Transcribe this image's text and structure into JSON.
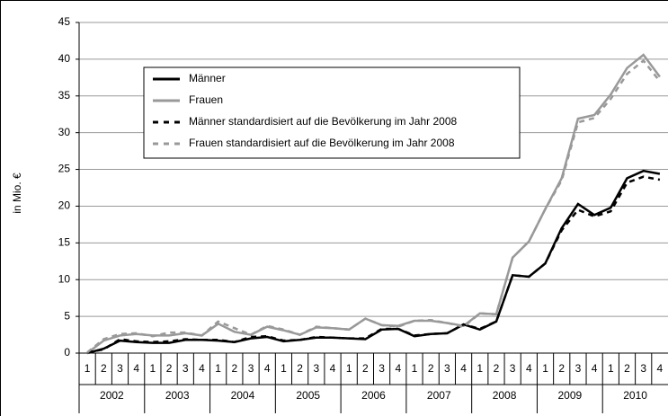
{
  "chart_data": {
    "type": "line",
    "y_label": "in Mio. €",
    "categories": [
      "1",
      "2",
      "3",
      "4",
      "1",
      "2",
      "3",
      "4",
      "1",
      "2",
      "3",
      "4",
      "1",
      "2",
      "3",
      "4",
      "1",
      "2",
      "3",
      "4",
      "1",
      "2",
      "3",
      "4",
      "1",
      "2",
      "3",
      "4",
      "1",
      "2",
      "3",
      "4",
      "1",
      "2",
      "3",
      "4"
    ],
    "year_groups": [
      "2002",
      "2003",
      "2004",
      "2005",
      "2006",
      "2007",
      "2008",
      "2009",
      "2010"
    ],
    "ylim": [
      0,
      45
    ],
    "yticks": [
      0,
      5,
      10,
      15,
      20,
      25,
      30,
      35,
      40,
      45
    ],
    "grid": true,
    "series": [
      {
        "name": "Männer",
        "color": "#000000",
        "dashed": false,
        "values": [
          0,
          0.6,
          1.7,
          1.5,
          1.4,
          1.4,
          1.8,
          1.8,
          1.7,
          1.5,
          2.0,
          2.2,
          1.6,
          1.8,
          2.1,
          2.1,
          2.0,
          1.9,
          3.2,
          3.3,
          2.3,
          2.6,
          2.7,
          3.9,
          3.2,
          4.3,
          10.6,
          10.4,
          12.2,
          17.0,
          20.3,
          18.8,
          19.8,
          23.8,
          24.8,
          24.4
        ]
      },
      {
        "name": "Frauen",
        "color": "#999999",
        "dashed": false,
        "values": [
          0,
          1.7,
          2.4,
          2.6,
          2.4,
          2.4,
          2.7,
          2.4,
          4.0,
          2.9,
          2.5,
          3.6,
          3.1,
          2.5,
          3.5,
          3.4,
          3.2,
          4.7,
          3.8,
          3.7,
          4.4,
          4.4,
          4.1,
          3.7,
          5.4,
          5.3,
          13.0,
          15.2,
          19.6,
          23.8,
          31.9,
          32.4,
          35.2,
          38.8,
          40.6,
          37.6
        ]
      },
      {
        "name": "Männer standardisiert auf die Bevölkerung im Jahr 2008",
        "color": "#000000",
        "dashed": true,
        "values": [
          0.1,
          0.5,
          1.9,
          1.6,
          1.5,
          1.6,
          1.9,
          1.8,
          1.8,
          1.5,
          2.2,
          2.3,
          1.7,
          1.8,
          2.2,
          2.1,
          2.0,
          2.0,
          3.3,
          3.3,
          2.4,
          2.6,
          2.7,
          3.9,
          3.3,
          4.3,
          10.6,
          10.4,
          12.2,
          16.7,
          19.5,
          18.6,
          19.3,
          23.2,
          24.0,
          23.6
        ]
      },
      {
        "name": "Frauen standardisiert auf die Bevölkerung im Jahr  2008",
        "color": "#999999",
        "dashed": true,
        "values": [
          0.1,
          1.9,
          2.6,
          2.7,
          2.3,
          2.8,
          2.8,
          2.4,
          4.3,
          3.4,
          2.5,
          3.7,
          3.2,
          2.5,
          3.6,
          3.4,
          3.2,
          4.7,
          3.8,
          3.6,
          4.4,
          4.5,
          4.1,
          3.6,
          5.4,
          5.3,
          13.0,
          15.2,
          19.6,
          23.5,
          31.4,
          32.0,
          34.6,
          38.0,
          39.8,
          37.0
        ]
      }
    ]
  }
}
